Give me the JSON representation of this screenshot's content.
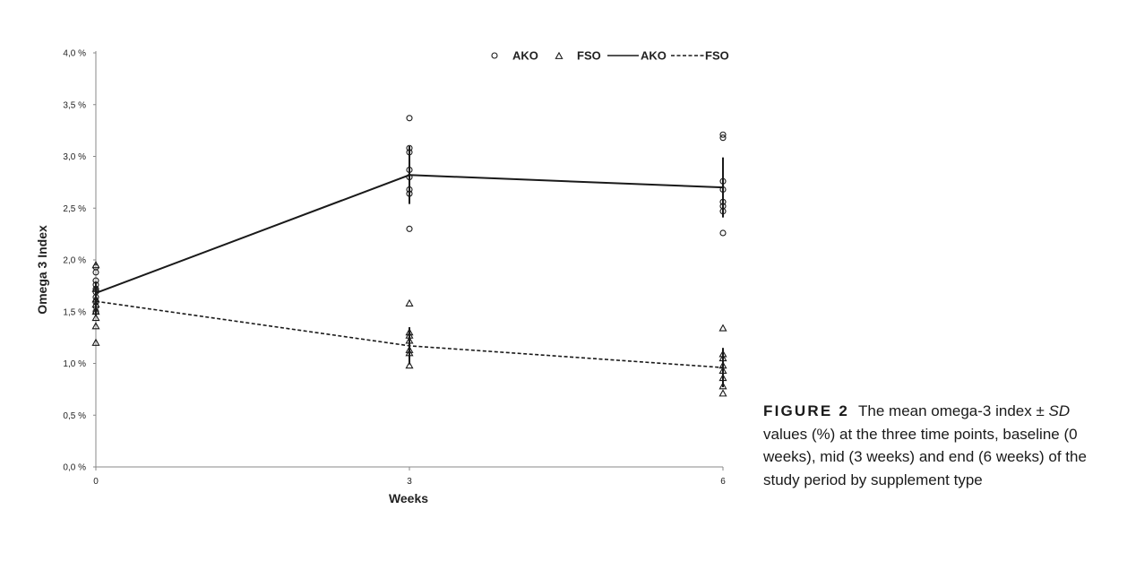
{
  "caption": {
    "label": "FIGURE 2",
    "text_1": "The mean omega-3 index ± ",
    "text_sd": "SD",
    "text_2": " values (%) at the three time points, baseline (0 weeks), mid (3 weeks) and end (6 weeks) of the study period by supplement type"
  },
  "chart_data": {
    "type": "line",
    "xlabel": "Weeks",
    "ylabel": "Omega 3 Index",
    "x_ticks": [
      "0",
      "3",
      "6"
    ],
    "x_values": [
      0,
      3,
      6
    ],
    "y_ticks": [
      "0,0 %",
      "0,5 %",
      "1,0 %",
      "1,5 %",
      "2,0 %",
      "2,5 %",
      "3,0 %",
      "3,5 %",
      "4,0 %"
    ],
    "ylim": [
      0,
      4.0
    ],
    "xlim": [
      0,
      6
    ],
    "grid": false,
    "legend_position": "top-right",
    "legend": [
      "AKO",
      "FSO",
      "AKO",
      "FSO"
    ],
    "series": [
      {
        "name": "AKO",
        "style": "solid",
        "marker": "circle",
        "color": "#1a1a1a",
        "x": [
          0,
          3,
          6
        ],
        "mean": [
          1.68,
          2.82,
          2.7
        ],
        "sd": [
          0.11,
          0.28,
          0.29
        ],
        "points": [
          [
            0,
            1.93
          ],
          [
            0,
            1.88
          ],
          [
            0,
            1.8
          ],
          [
            0,
            1.76
          ],
          [
            0,
            1.72
          ],
          [
            0,
            1.69
          ],
          [
            0,
            1.64
          ],
          [
            0,
            1.59
          ],
          [
            0,
            1.55
          ],
          [
            0,
            1.5
          ],
          [
            3,
            3.37
          ],
          [
            3,
            3.08
          ],
          [
            3,
            3.04
          ],
          [
            3,
            2.87
          ],
          [
            3,
            2.8
          ],
          [
            3,
            2.68
          ],
          [
            3,
            2.64
          ],
          [
            3,
            2.3
          ],
          [
            6,
            3.21
          ],
          [
            6,
            3.18
          ],
          [
            6,
            2.76
          ],
          [
            6,
            2.68
          ],
          [
            6,
            2.56
          ],
          [
            6,
            2.52
          ],
          [
            6,
            2.47
          ],
          [
            6,
            2.26
          ]
        ]
      },
      {
        "name": "FSO",
        "style": "dashed",
        "marker": "triangle",
        "color": "#1a1a1a",
        "x": [
          0,
          3,
          6
        ],
        "mean": [
          1.6,
          1.17,
          0.96
        ],
        "sd": [
          0.14,
          0.18,
          0.19
        ],
        "points": [
          [
            0,
            1.95
          ],
          [
            0,
            1.72
          ],
          [
            0,
            1.62
          ],
          [
            0,
            1.57
          ],
          [
            0,
            1.5
          ],
          [
            0,
            1.44
          ],
          [
            0,
            1.36
          ],
          [
            0,
            1.2
          ],
          [
            3,
            1.58
          ],
          [
            3,
            1.3
          ],
          [
            3,
            1.27
          ],
          [
            3,
            1.22
          ],
          [
            3,
            1.13
          ],
          [
            3,
            1.1
          ],
          [
            3,
            0.98
          ],
          [
            6,
            1.34
          ],
          [
            6,
            1.09
          ],
          [
            6,
            1.05
          ],
          [
            6,
            0.98
          ],
          [
            6,
            0.93
          ],
          [
            6,
            0.86
          ],
          [
            6,
            0.78
          ],
          [
            6,
            0.71
          ]
        ]
      }
    ]
  }
}
